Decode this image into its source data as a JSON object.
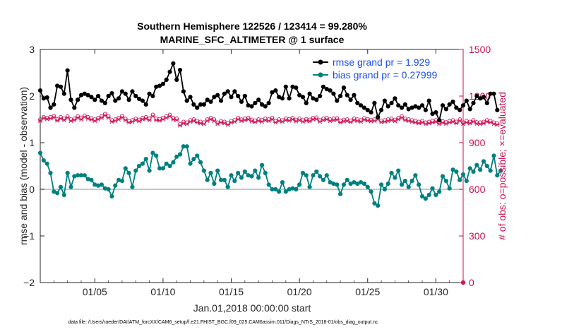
{
  "chart_data": {
    "type": "line",
    "title_line1": "Southern Hemisphere 122526 / 123414 = 99.280%",
    "title_line2": "MARINE_SFC_ALTIMETER @ 1 surface",
    "xlabel": "Jan.01,2018 00:00:00 start",
    "ylabel_left": "rmse and bias (model - observation)",
    "ylabel_right": "# of obs: o=possible; ×=evaluated",
    "ylim_left": [
      -2,
      3
    ],
    "ylim_right": [
      0,
      1500
    ],
    "xlim_days": [
      1,
      32
    ],
    "x_tick_days": [
      5,
      10,
      15,
      20,
      25,
      30
    ],
    "x_tick_labels": [
      "01/05",
      "01/10",
      "01/15",
      "01/20",
      "01/25",
      "01/30"
    ],
    "y_ticks_left": [
      "-2",
      "-1",
      "0",
      "1",
      "2",
      "3"
    ],
    "y_ticks_right": [
      "0",
      "300",
      "600",
      "900",
      "1200",
      "1500"
    ],
    "legend": [
      "rmse grand pr = 1.929",
      "bias grand pr = 0.27999"
    ],
    "colors": {
      "rmse": "#000000",
      "bias": "#008080",
      "obs": "#d1175a",
      "zero_line": "#b3b3b3"
    },
    "series": [
      {
        "name": "rmse",
        "axis": "left",
        "values": [
          2.12,
          1.95,
          1.97,
          1.75,
          1.82,
          2.22,
          2.2,
          2.05,
          2.55,
          1.92,
          1.75,
          1.92,
          2.02,
          2.05,
          2.02,
          1.98,
          1.92,
          2.0,
          1.9,
          1.85,
          2.0,
          2.06,
          1.9,
          1.95,
          2.1,
          2.05,
          1.92,
          2.1,
          2.0,
          1.94,
          1.9,
          1.82,
          2.05,
          2.0,
          2.2,
          2.22,
          2.26,
          2.35,
          2.52,
          2.7,
          2.35,
          2.56,
          2.1,
          1.9,
          1.98,
          1.82,
          1.75,
          1.82,
          1.82,
          1.92,
          1.88,
          1.98,
          2.02,
          1.9,
          2.05,
          2.1,
          1.98,
          2.1,
          2.0,
          1.88,
          2.0,
          1.8,
          1.78,
          1.85,
          1.92,
          1.82,
          1.78,
          1.85,
          2.08,
          2.12,
          1.98,
          1.95,
          2.2,
          1.95,
          2.2,
          2.18,
          2.02,
          1.98,
          1.85,
          2.05,
          1.95,
          1.92,
          2.0,
          2.2,
          2.15,
          2.12,
          2.05,
          1.9,
          2.0,
          2.18,
          2.02,
          1.92,
          2.02,
          1.85,
          1.8,
          1.75,
          1.7,
          1.65,
          1.85,
          1.55,
          1.7,
          1.9,
          1.78,
          1.85,
          1.95,
          1.8,
          1.75,
          1.82,
          1.72,
          1.75,
          1.78,
          1.75,
          1.8,
          1.7,
          1.9,
          1.62,
          1.65,
          1.48,
          1.8,
          1.72,
          1.82,
          1.88,
          1.75,
          1.7,
          1.8,
          1.9,
          1.72,
          1.85,
          2.0,
          1.95,
          1.98,
          1.85,
          2.05,
          2.05,
          1.7
        ]
      },
      {
        "name": "bias",
        "axis": "left",
        "values": [
          0.78,
          0.62,
          0.55,
          0.35,
          -0.05,
          -0.08,
          0.05,
          -0.12,
          0.35,
          0.05,
          0.28,
          0.3,
          0.3,
          0.3,
          0.22,
          0.2,
          0.1,
          0.08,
          0.1,
          0.02,
          0.0,
          -0.15,
          0.08,
          0.2,
          0.18,
          0.45,
          0.35,
          0.05,
          0.4,
          0.5,
          0.55,
          0.65,
          0.4,
          0.78,
          0.72,
          0.45,
          0.45,
          0.55,
          0.5,
          0.58,
          0.7,
          0.75,
          0.92,
          0.92,
          0.55,
          0.65,
          0.72,
          0.58,
          0.4,
          0.2,
          0.35,
          0.12,
          0.4,
          0.2,
          0.2,
          0.05,
          0.3,
          0.18,
          0.35,
          0.25,
          0.38,
          0.3,
          0.28,
          0.4,
          0.25,
          0.52,
          0.35,
          0.1,
          0.0,
          0.0,
          -0.05,
          0.15,
          -0.05,
          0.0,
          0.02,
          0.0,
          0.1,
          0.35,
          0.3,
          0.05,
          0.3,
          0.38,
          0.28,
          0.2,
          0.3,
          0.15,
          0.12,
          0.1,
          -0.1,
          0.1,
          0.2,
          0.12,
          0.15,
          0.12,
          0.15,
          0.12,
          0.05,
          -0.05,
          -0.3,
          -0.35,
          0.1,
          0.0,
          0.12,
          0.35,
          0.25,
          0.4,
          0.1,
          0.18,
          0.05,
          0.18,
          0.3,
          0.1,
          -0.15,
          -0.2,
          -0.12,
          0.02,
          -0.12,
          -0.05,
          0.28,
          0.18,
          0.02,
          0.42,
          0.38,
          0.2,
          0.32,
          0.18,
          0.45,
          0.38,
          0.52,
          0.42,
          0.6,
          0.5,
          0.4,
          0.72,
          0.3,
          0.4
        ]
      },
      {
        "name": "obs_possible",
        "axis": "right",
        "values": [
          1050,
          1065,
          1060,
          1065,
          1072,
          1050,
          1065,
          1055,
          1070,
          1050,
          1055,
          1070,
          1060,
          1075,
          1065,
          1058,
          1050,
          1060,
          1070,
          1085,
          1070,
          1045,
          1050,
          1060,
          1072,
          1055,
          1040,
          1045,
          1055,
          1048,
          1060,
          1065,
          1055,
          1080,
          1055,
          1052,
          1060,
          1070,
          1080,
          1060,
          1055,
          1020,
          1035,
          1030,
          1045,
          1050,
          1040,
          1035,
          1030,
          1050,
          1060,
          1050,
          1030,
          1040,
          1035,
          1025,
          1040,
          1045,
          1060,
          1050,
          1055,
          1060,
          1048,
          1042,
          1050,
          1045,
          1055,
          1050,
          1060,
          1040,
          1050,
          1045,
          1055,
          1052,
          1060,
          1048,
          1055,
          1045,
          1052,
          1048,
          1060,
          1062,
          1045,
          1055,
          1060,
          1050,
          1055,
          1058,
          1040,
          1048,
          1050,
          1042,
          1055,
          1050,
          1045,
          1058,
          1052,
          1048,
          1050,
          1060,
          1042,
          1045,
          1050,
          1055,
          1048,
          1060,
          1070,
          1055,
          1050,
          1045,
          1040,
          1035,
          1040,
          1030,
          1035,
          1040,
          1045,
          1030,
          1038,
          1032,
          1040,
          1045,
          1035,
          1050,
          1030,
          1040,
          1035,
          1045,
          1032,
          1030,
          1035,
          1045,
          1040,
          1030,
          1025
        ]
      },
      {
        "name": "obs_evaluated",
        "axis": "right",
        "values": [
          1040,
          1058,
          1052,
          1056,
          1062,
          1042,
          1055,
          1046,
          1060,
          1040,
          1046,
          1060,
          1050,
          1065,
          1055,
          1048,
          1040,
          1050,
          1060,
          1075,
          1060,
          1035,
          1040,
          1050,
          1062,
          1045,
          1030,
          1035,
          1045,
          1038,
          1050,
          1055,
          1045,
          1070,
          1045,
          1042,
          1050,
          1060,
          1070,
          1050,
          1045,
          1010,
          1025,
          1020,
          1035,
          1040,
          1030,
          1025,
          1020,
          1040,
          1050,
          1040,
          1020,
          1030,
          1025,
          1015,
          1030,
          1035,
          1050,
          1040,
          1045,
          1050,
          1038,
          1032,
          1040,
          1035,
          1045,
          1040,
          1050,
          1030,
          1040,
          1035,
          1045,
          1042,
          1050,
          1038,
          1045,
          1035,
          1042,
          1038,
          1050,
          1052,
          1035,
          1045,
          1050,
          1040,
          1045,
          1048,
          1030,
          1038,
          1040,
          1032,
          1045,
          1040,
          1035,
          1048,
          1042,
          1038,
          1040,
          1050,
          1032,
          1035,
          1040,
          1045,
          1038,
          1050,
          1060,
          1045,
          1040,
          1035,
          1030,
          1025,
          1030,
          1020,
          1025,
          1030,
          1035,
          1020,
          1028,
          1022,
          1030,
          1035,
          1025,
          1040,
          1020,
          1030,
          1025,
          1035,
          1022,
          1020,
          1025,
          1035,
          1030,
          1020,
          1015
        ]
      }
    ]
  },
  "footer": "data file: /Users/raeder/DAI/ATM_forcXX/CAM6_setup/f.e21.FHIST_BGC.f09_025.CAM6assim.011/Diags_NTrS_2018-01/obs_diag_output.nc"
}
